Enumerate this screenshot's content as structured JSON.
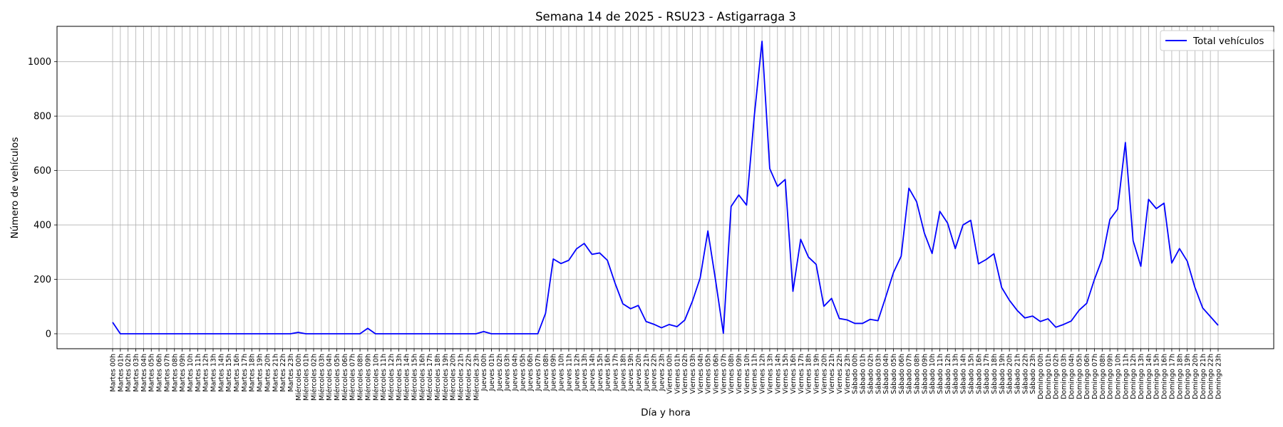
{
  "chart_data": {
    "type": "line",
    "title": "Semana 14 de 2025 - RSU23 - Astigarraga 3",
    "xlabel": "Día y hora",
    "ylabel": "Número de vehículos",
    "ylim": [
      -55,
      1130
    ],
    "yticks": [
      0,
      200,
      400,
      600,
      800,
      1000
    ],
    "grid": true,
    "legend_position": "top-right",
    "x": [
      "Martes 00h",
      "Martes 01h",
      "Martes 02h",
      "Martes 03h",
      "Martes 04h",
      "Martes 05h",
      "Martes 06h",
      "Martes 07h",
      "Martes 08h",
      "Martes 09h",
      "Martes 10h",
      "Martes 11h",
      "Martes 12h",
      "Martes 13h",
      "Martes 14h",
      "Martes 15h",
      "Martes 16h",
      "Martes 17h",
      "Martes 18h",
      "Martes 19h",
      "Martes 20h",
      "Martes 21h",
      "Martes 22h",
      "Martes 23h",
      "Miércoles 00h",
      "Miércoles 01h",
      "Miércoles 02h",
      "Miércoles 03h",
      "Miércoles 04h",
      "Miércoles 05h",
      "Miércoles 06h",
      "Miércoles 07h",
      "Miércoles 08h",
      "Miércoles 09h",
      "Miércoles 10h",
      "Miércoles 11h",
      "Miércoles 12h",
      "Miércoles 13h",
      "Miércoles 14h",
      "Miércoles 15h",
      "Miércoles 16h",
      "Miércoles 17h",
      "Miércoles 18h",
      "Miércoles 19h",
      "Miércoles 20h",
      "Miércoles 21h",
      "Miércoles 22h",
      "Miércoles 23h",
      "Jueves 00h",
      "Jueves 01h",
      "Jueves 02h",
      "Jueves 03h",
      "Jueves 04h",
      "Jueves 05h",
      "Jueves 06h",
      "Jueves 07h",
      "Jueves 08h",
      "Jueves 09h",
      "Jueves 10h",
      "Jueves 11h",
      "Jueves 12h",
      "Jueves 13h",
      "Jueves 14h",
      "Jueves 15h",
      "Jueves 16h",
      "Jueves 17h",
      "Jueves 18h",
      "Jueves 19h",
      "Jueves 20h",
      "Jueves 21h",
      "Jueves 22h",
      "Jueves 23h",
      "Viernes 00h",
      "Viernes 01h",
      "Viernes 02h",
      "Viernes 03h",
      "Viernes 04h",
      "Viernes 05h",
      "Viernes 06h",
      "Viernes 07h",
      "Viernes 08h",
      "Viernes 09h",
      "Viernes 10h",
      "Viernes 11h",
      "Viernes 12h",
      "Viernes 13h",
      "Viernes 14h",
      "Viernes 15h",
      "Viernes 16h",
      "Viernes 17h",
      "Viernes 18h",
      "Viernes 19h",
      "Viernes 20h",
      "Viernes 21h",
      "Viernes 22h",
      "Viernes 23h",
      "Sábado 00h",
      "Sábado 01h",
      "Sábado 02h",
      "Sábado 03h",
      "Sábado 04h",
      "Sábado 05h",
      "Sábado 06h",
      "Sábado 07h",
      "Sábado 08h",
      "Sábado 09h",
      "Sábado 10h",
      "Sábado 11h",
      "Sábado 12h",
      "Sábado 13h",
      "Sábado 14h",
      "Sábado 15h",
      "Sábado 16h",
      "Sábado 17h",
      "Sábado 18h",
      "Sábado 19h",
      "Sábado 20h",
      "Sábado 21h",
      "Sábado 22h",
      "Sábado 23h",
      "Domingo 00h",
      "Domingo 01h",
      "Domingo 02h",
      "Domingo 03h",
      "Domingo 04h",
      "Domingo 05h",
      "Domingo 06h",
      "Domingo 07h",
      "Domingo 08h",
      "Domingo 09h",
      "Domingo 10h",
      "Domingo 11h",
      "Domingo 12h",
      "Domingo 13h",
      "Domingo 14h",
      "Domingo 15h",
      "Domingo 16h",
      "Domingo 17h",
      "Domingo 18h",
      "Domingo 19h",
      "Domingo 20h",
      "Domingo 21h",
      "Domingo 22h",
      "Domingo 23h"
    ],
    "series": [
      {
        "name": "Total vehículos",
        "color": "#0000ff",
        "values": [
          42,
          0,
          0,
          0,
          0,
          0,
          0,
          0,
          0,
          0,
          0,
          0,
          0,
          0,
          0,
          0,
          0,
          0,
          0,
          0,
          0,
          0,
          0,
          0,
          5,
          0,
          0,
          0,
          0,
          0,
          0,
          0,
          0,
          20,
          0,
          0,
          0,
          0,
          0,
          0,
          0,
          0,
          0,
          0,
          0,
          0,
          0,
          0,
          8,
          0,
          0,
          0,
          0,
          0,
          0,
          0,
          75,
          275,
          258,
          270,
          312,
          332,
          292,
          297,
          270,
          185,
          110,
          92,
          104,
          45,
          35,
          22,
          34,
          26,
          50,
          120,
          205,
          378,
          195,
          2,
          468,
          510,
          473,
          800,
          1075,
          607,
          542,
          567,
          156,
          347,
          282,
          255,
          101,
          130,
          56,
          51,
          38,
          38,
          53,
          48,
          135,
          225,
          285,
          535,
          485,
          370,
          295,
          450,
          407,
          313,
          400,
          417,
          257,
          273,
          294,
          170,
          123,
          86,
          58,
          65,
          45,
          55,
          24,
          34,
          47,
          86,
          112,
          200,
          275,
          420,
          458,
          703,
          342,
          248,
          494,
          460,
          480,
          260,
          313,
          267,
          170,
          95,
          63,
          31
        ]
      }
    ]
  }
}
